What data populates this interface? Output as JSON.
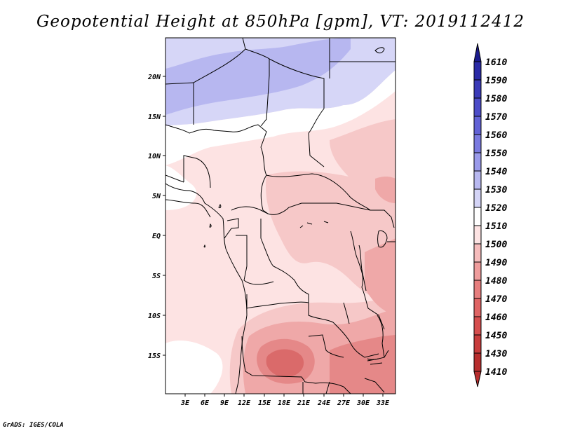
{
  "title": "Geopotential Height at 850hPa [gpm], VT: 2019112412",
  "credit": "GrADS: IGES/COLA",
  "map": {
    "lat_labels": [
      "20N",
      "15N",
      "10N",
      "5N",
      "EQ",
      "5S",
      "10S",
      "15S"
    ],
    "lon_labels": [
      "3E",
      "6E",
      "9E",
      "12E",
      "15E",
      "18E",
      "21E",
      "24E",
      "27E",
      "30E",
      "33E"
    ]
  },
  "colorbar": {
    "labels": [
      "1610",
      "1590",
      "1580",
      "1570",
      "1560",
      "1550",
      "1540",
      "1530",
      "1520",
      "1510",
      "1500",
      "1490",
      "1480",
      "1470",
      "1460",
      "1450",
      "1430",
      "1410"
    ],
    "colors": [
      "#1a1a8c",
      "#2a2aa6",
      "#3a3ab8",
      "#4c4cc8",
      "#6262d6",
      "#7a7ae0",
      "#9a9aea",
      "#b8b8f0",
      "#d4d4f6",
      "#ffffff",
      "#fde3e3",
      "#f6bcbc",
      "#ef9c9c",
      "#e77e7e",
      "#df6464",
      "#d64e4e",
      "#c83c3c",
      "#b82e2e"
    ]
  },
  "region_colors": {
    "blue_dark": "#b7b7f0",
    "blue_light": "#d6d6f7",
    "white": "#ffffff",
    "pink_light": "#fde3e3",
    "pink": "#f6c8c8",
    "pink_mid": "#efa8a8",
    "red": "#e58888",
    "red_dark": "#da6a6a",
    "border": "#000000"
  }
}
